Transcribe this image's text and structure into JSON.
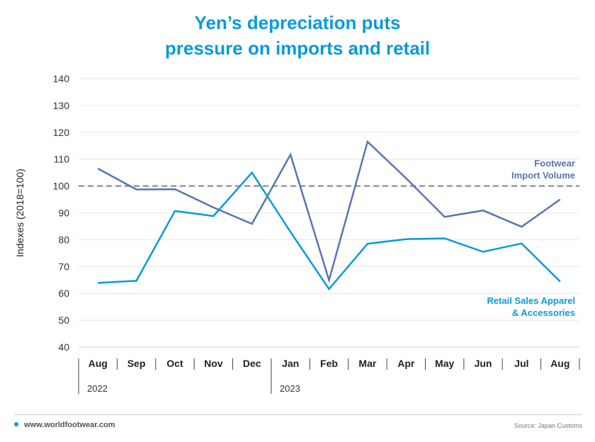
{
  "title_lines": [
    "Yen’s depreciation puts",
    "pressure on imports and retail"
  ],
  "footer": {
    "website": "www.worldfootwear.com",
    "source": "Source: Japan Customs"
  },
  "colors": {
    "title": "#0a9ad9",
    "footwear": "#5b74b0",
    "retail": "#0a9ad9",
    "reference": "#999999"
  },
  "chart_data": {
    "type": "line",
    "ylabel": "Indexes (2018=100)",
    "ylim": [
      40,
      140
    ],
    "yticks": [
      40,
      50,
      60,
      70,
      80,
      90,
      100,
      110,
      120,
      130,
      140
    ],
    "categories": [
      "Aug",
      "Sep",
      "Oct",
      "Nov",
      "Dec",
      "Jan",
      "Feb",
      "Mar",
      "Apr",
      "May",
      "Jun",
      "Jul",
      "Aug"
    ],
    "year_labels": [
      {
        "label": "2022",
        "start_index": 0
      },
      {
        "label": "2023",
        "start_index": 5
      }
    ],
    "reference_line": 100,
    "grid": true,
    "series": [
      {
        "name": "Footwear Import Volume",
        "label_lines": [
          "Footwear",
          "Import Volume"
        ],
        "color": "#5b74b0",
        "values": [
          106.5,
          98.7,
          98.8,
          92.0,
          85.9,
          111.7,
          64.9,
          116.5,
          102.9,
          88.5,
          90.9,
          84.8,
          95.0
        ]
      },
      {
        "name": "Retail Sales Apparel & Accessories",
        "label_lines": [
          "Retail Sales Apparel",
          "& Accessories"
        ],
        "color": "#0a9ad9",
        "values": [
          63.9,
          64.7,
          90.7,
          88.8,
          105.0,
          82.9,
          61.6,
          78.5,
          80.2,
          80.5,
          75.5,
          78.6,
          64.4
        ]
      }
    ]
  }
}
